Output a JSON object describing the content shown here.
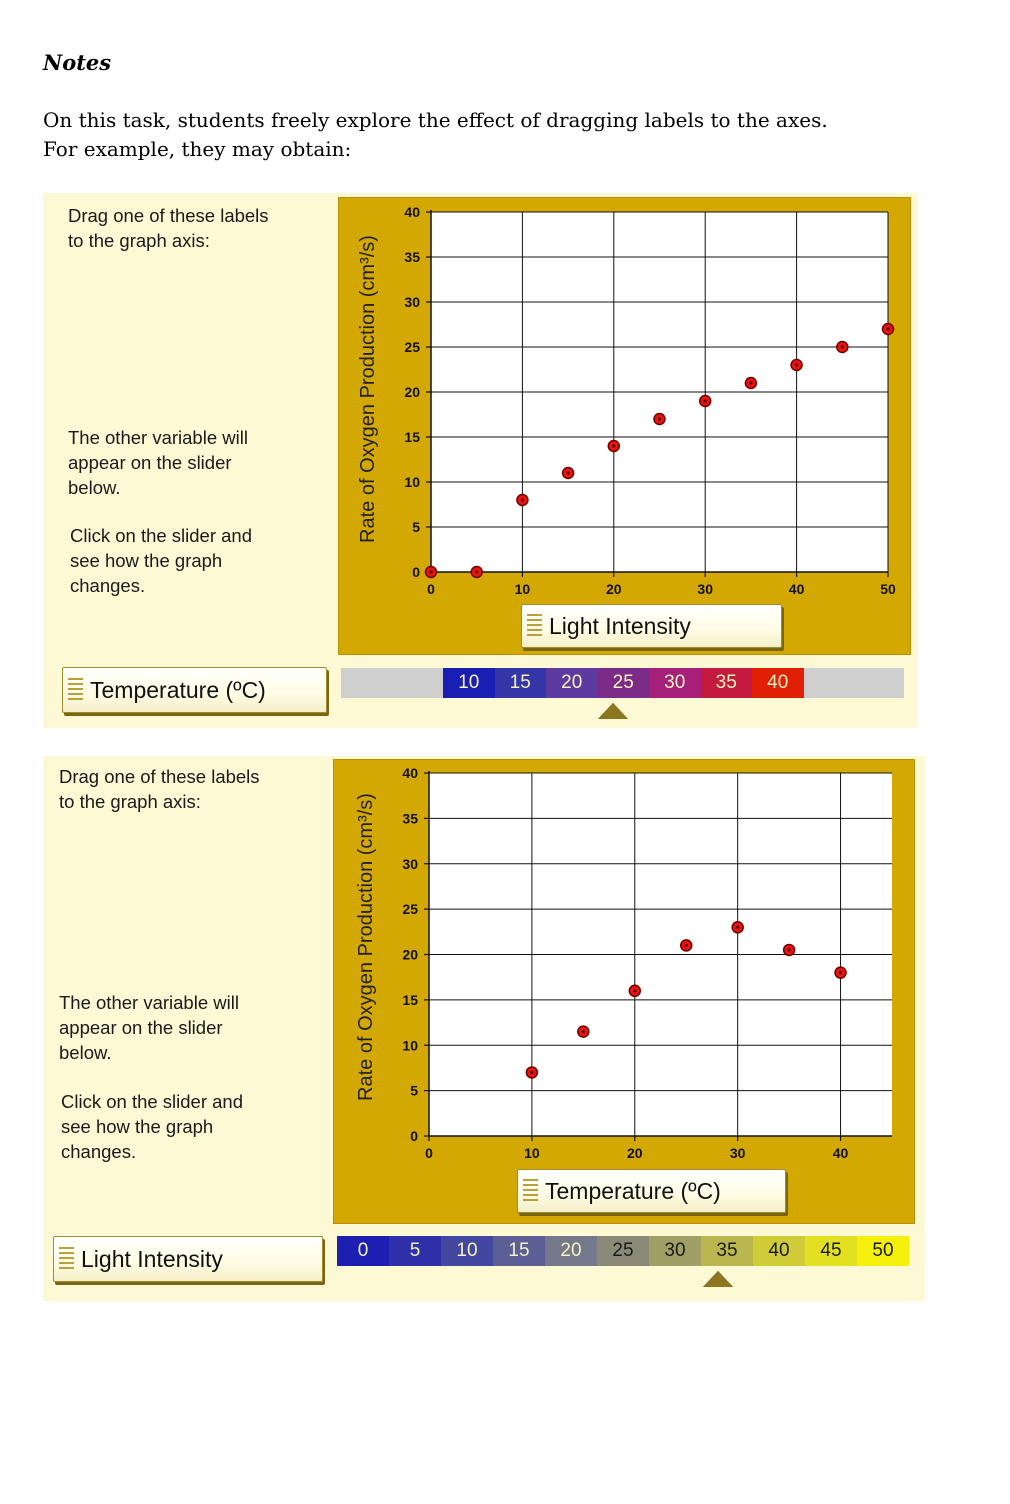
{
  "notes": {
    "heading": "Notes",
    "line1": "On this task, students freely explore the effect of dragging labels to the axes.",
    "line2": "For example, they may obtain:"
  },
  "examples": [
    {
      "instructions": {
        "drag_line1": "Drag one of these labels",
        "drag_line2": "to the graph axis:",
        "other_line1": "The other variable will",
        "other_line2": "appear on the slider",
        "other_line3": "below.",
        "click_line1": "Click on the slider and",
        "click_line2": "see how the graph",
        "click_line3": "changes."
      },
      "unused_label": "Temperature (ºC)",
      "x_axis_button": "Light Intensity",
      "slider": {
        "values": [
          "10",
          "15",
          "20",
          "25",
          "30",
          "35",
          "40"
        ],
        "colors": [
          "#1a1fb4",
          "#3535a8",
          "#5c3aa0",
          "#7c2b88",
          "#a6207a",
          "#c41a40",
          "#e01f05"
        ],
        "text_color": "#f5f3c0",
        "selected": "25"
      },
      "chart_data": {
        "type": "scatter",
        "ylabel": "Rate of Oxygen Production (cm³/s)",
        "xlabel": "Light Intensity",
        "xlim": [
          0,
          50
        ],
        "ylim": [
          0,
          40
        ],
        "x_ticks": [
          "0",
          "10",
          "20",
          "30",
          "40",
          "50"
        ],
        "y_ticks": [
          "0",
          "5",
          "10",
          "15",
          "20",
          "25",
          "30",
          "35",
          "40"
        ],
        "grid": true,
        "x": [
          0,
          5,
          10,
          15,
          20,
          25,
          30,
          35,
          40,
          45,
          50
        ],
        "y": [
          0,
          0,
          8,
          11,
          14,
          17,
          19,
          21,
          23,
          25,
          27
        ]
      }
    },
    {
      "instructions": {
        "drag_line1": "Drag one of these labels",
        "drag_line2": "to the graph axis:",
        "other_line1": "The other variable will",
        "other_line2": "appear on the slider",
        "other_line3": "below.",
        "click_line1": "Click on the slider and",
        "click_line2": "see how the graph",
        "click_line3": "changes."
      },
      "unused_label": "Light Intensity",
      "x_axis_button": "Temperature (ºC)",
      "slider": {
        "values": [
          "0",
          "5",
          "10",
          "15",
          "20",
          "25",
          "30",
          "35",
          "40",
          "45",
          "50"
        ],
        "colors": [
          "#1d1fb2",
          "#2e31aa",
          "#44479f",
          "#5c5f95",
          "#75788a",
          "#8b8a78",
          "#a09f66",
          "#b9b74e",
          "#cfcc38",
          "#e3e022",
          "#f4f00c"
        ],
        "text_colors": [
          "#f5f3c0",
          "#f5f3c0",
          "#f5f3c0",
          "#f5f3c0",
          "#f5f3c0",
          "#1a1a1a",
          "#1a1a1a",
          "#1a1a1a",
          "#1a1a1a",
          "#1a1a1a",
          "#1a1a1a"
        ],
        "selected": "35"
      },
      "chart_data": {
        "type": "scatter",
        "ylabel": "Rate of Oxygen Production (cm³/s)",
        "xlabel": "Temperature (ºC)",
        "xlim": [
          0,
          45
        ],
        "ylim": [
          0,
          40
        ],
        "x_ticks": [
          "0",
          "10",
          "20",
          "30",
          "40"
        ],
        "y_ticks": [
          "0",
          "5",
          "10",
          "15",
          "20",
          "25",
          "30",
          "35",
          "40"
        ],
        "grid": true,
        "x": [
          10,
          15,
          20,
          25,
          30,
          35,
          40
        ],
        "y": [
          7,
          11.5,
          16,
          21,
          23,
          20.5,
          18
        ]
      }
    }
  ]
}
